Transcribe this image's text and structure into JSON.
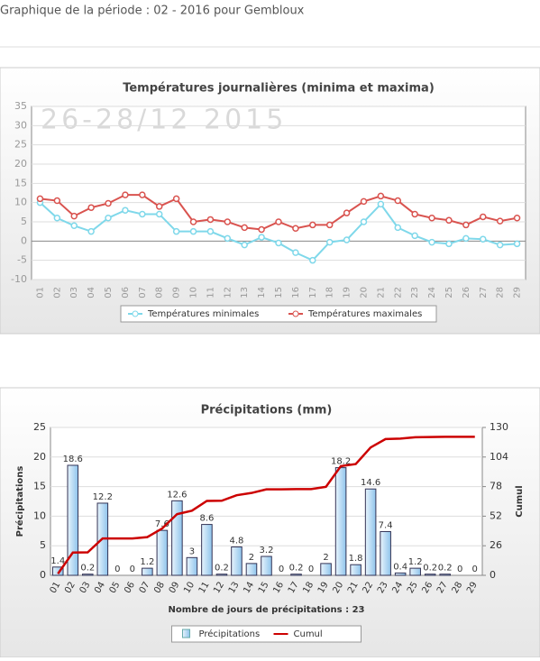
{
  "header": {
    "title": "Graphique de la période : 02 - 2016 pour Gembloux"
  },
  "chart_data": [
    {
      "type": "line",
      "title": "Températures journalières (minima et maxima)",
      "watermark": "26-28/12 2015",
      "categories": [
        "01",
        "02",
        "03",
        "04",
        "05",
        "06",
        "07",
        "08",
        "09",
        "10",
        "11",
        "12",
        "13",
        "14",
        "15",
        "16",
        "17",
        "18",
        "19",
        "20",
        "21",
        "22",
        "23",
        "24",
        "25",
        "26",
        "27",
        "28",
        "29"
      ],
      "ylim": [
        -10,
        35
      ],
      "yticks": [
        -10,
        -5,
        0,
        5,
        10,
        15,
        20,
        25,
        30,
        35
      ],
      "grid": true,
      "series": [
        {
          "name": "Températures minimales",
          "color": "#7fd8ea",
          "values": [
            10,
            6,
            4,
            2.5,
            6,
            8,
            7,
            7,
            2.5,
            2.5,
            2.5,
            0.7,
            -1,
            1,
            -0.5,
            -3,
            -5,
            -0.3,
            0.3,
            5,
            9.6,
            3.5,
            1.4,
            -0.3,
            -0.7,
            0.7,
            0.5,
            -1,
            -0.7
          ]
        },
        {
          "name": "Températures maximales",
          "color": "#d9534f",
          "values": [
            11,
            10.5,
            6.5,
            8.7,
            9.8,
            12,
            12,
            9,
            11,
            5,
            5.6,
            5,
            3.5,
            3,
            5,
            3.3,
            4.2,
            4.2,
            7.3,
            10.3,
            11.7,
            10.5,
            7,
            6,
            5.4,
            4.2,
            6.3,
            5.2,
            6
          ]
        }
      ]
    },
    {
      "type": "bar",
      "title": "Précipitations (mm)",
      "x_label": "Nombre de jours de précipitations : 23",
      "y_label": "Précipitations",
      "y2_label": "Cumul",
      "categories": [
        "01",
        "02",
        "03",
        "04",
        "05",
        "06",
        "07",
        "08",
        "09",
        "10",
        "11",
        "12",
        "13",
        "14",
        "15",
        "16",
        "17",
        "18",
        "19",
        "20",
        "21",
        "22",
        "23",
        "24",
        "25",
        "26",
        "27",
        "28",
        "29"
      ],
      "ylim": [
        0,
        25
      ],
      "yticks": [
        0,
        5,
        10,
        15,
        20,
        25
      ],
      "y2lim": [
        0,
        130
      ],
      "y2ticks": [
        0,
        26,
        52,
        78,
        104,
        130
      ],
      "grid": true,
      "series": [
        {
          "name": "Précipitations",
          "color": "#a9d3f2",
          "values": [
            1.4,
            18.6,
            0.2,
            12.2,
            0,
            0,
            1.2,
            7.6,
            12.6,
            3,
            8.6,
            0.2,
            4.8,
            2,
            3.2,
            0,
            0.2,
            0,
            2,
            18.2,
            1.8,
            14.6,
            7.4,
            0.4,
            1.2,
            0.2,
            0.2,
            0,
            0
          ]
        },
        {
          "name": "Cumul",
          "color": "#cc0000",
          "axis": "y2",
          "values": [
            1.4,
            20,
            20.2,
            32.4,
            32.4,
            32.4,
            33.6,
            41.2,
            53.8,
            56.8,
            65.4,
            65.6,
            70.4,
            72.4,
            75.6,
            75.6,
            75.8,
            75.8,
            77.8,
            96,
            97.8,
            112.4,
            119.8,
            120.2,
            121.4,
            121.6,
            121.8,
            121.8,
            121.8
          ]
        }
      ]
    }
  ]
}
